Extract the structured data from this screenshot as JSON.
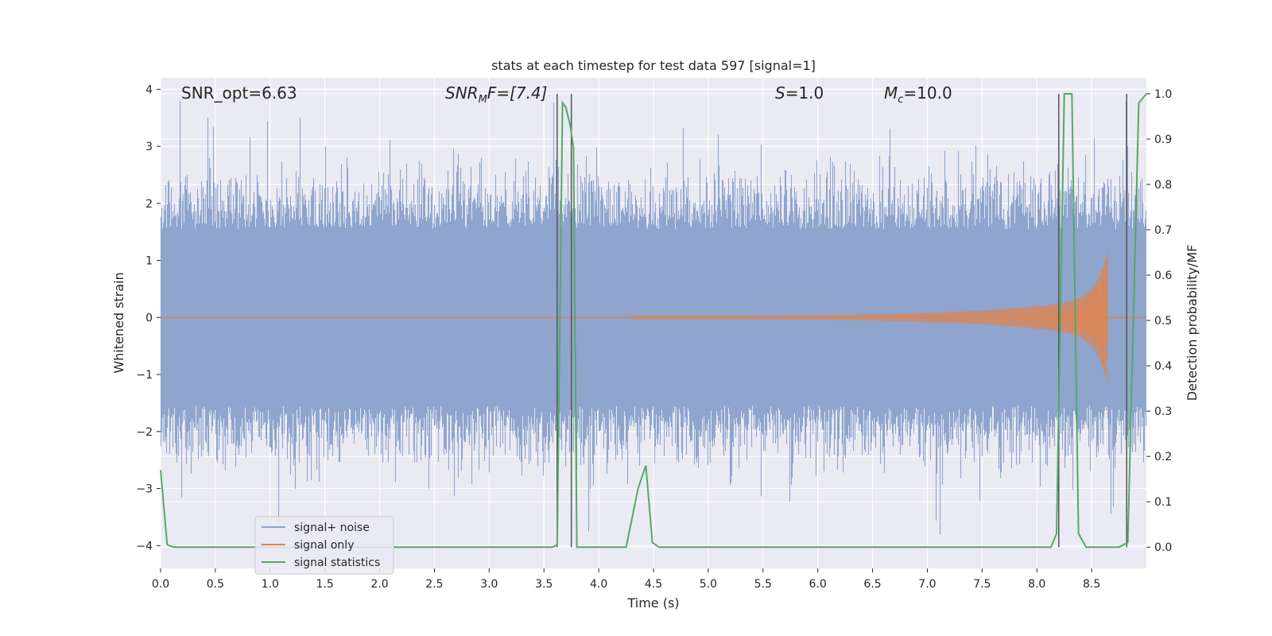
{
  "chart_data": {
    "type": "line",
    "title": "stats at each timestep for test data 597 [signal=1]",
    "xlabel": "Time (s)",
    "ylabel": "Whitened strain",
    "y2label": "Detection probability/MF",
    "xlim": [
      0.0,
      9.0
    ],
    "ylim": [
      -4.4,
      4.2
    ],
    "y2lim": [
      -0.047,
      1.035
    ],
    "x_ticks": [
      "0.0",
      "0.5",
      "1.0",
      "1.5",
      "2.0",
      "2.5",
      "3.0",
      "3.5",
      "4.0",
      "4.5",
      "5.0",
      "5.5",
      "6.0",
      "6.5",
      "7.0",
      "7.5",
      "8.0",
      "8.5"
    ],
    "y_ticks": [
      "−4",
      "−3",
      "−2",
      "−1",
      "0",
      "1",
      "2",
      "3",
      "4"
    ],
    "y2_ticks": [
      "0.0",
      "0.1",
      "0.2",
      "0.3",
      "0.4",
      "0.5",
      "0.6",
      "0.7",
      "0.8",
      "0.9",
      "1.0"
    ],
    "y2_tick_values": [
      0.0,
      0.1,
      0.2,
      0.3,
      0.4,
      0.5,
      0.6,
      0.7,
      0.8,
      0.9,
      1.0
    ],
    "grid": true,
    "legend_position": "lower-left",
    "annotations": {
      "snr_opt": "SNR_opt=6.63",
      "snr_mf_main": "SNR",
      "snr_mf_sub": "M",
      "snr_mf_rest": "F=[7.4]",
      "s_main": "S",
      "s_rest": "=1.0",
      "mc_main": "M",
      "mc_sub": "c",
      "mc_rest": "=10.0"
    },
    "series": [
      {
        "name": "signal+ noise",
        "color": "#8fa5ce",
        "envelope_amplitude": 1.55,
        "peak_amplitude": 3.8
      },
      {
        "name": "signal only",
        "color": "#dd8452",
        "chirp_start": 4.3,
        "chirp_peak_time": 8.65,
        "chirp_peak_amplitude": 1.2
      },
      {
        "name": "signal statistics",
        "color": "#55a868",
        "x": [
          0.0,
          0.06,
          0.12,
          0.5,
          1.0,
          1.5,
          2.0,
          2.5,
          3.0,
          3.5,
          3.58,
          3.62,
          3.67,
          3.7,
          3.74,
          3.77,
          3.8,
          3.85,
          4.0,
          4.25,
          4.36,
          4.43,
          4.49,
          4.55,
          5.0,
          6.0,
          7.0,
          8.0,
          8.13,
          8.18,
          8.25,
          8.3,
          8.32,
          8.38,
          8.45,
          8.6,
          8.75,
          8.83,
          8.93,
          9.0
        ],
        "y": [
          0.17,
          0.005,
          0.0,
          0.0,
          0.0,
          0.0,
          0.0,
          0.0,
          0.0,
          0.0,
          0.0,
          0.005,
          0.98,
          0.97,
          0.93,
          0.88,
          0.0,
          0.0,
          0.0,
          0.0,
          0.13,
          0.18,
          0.01,
          0.0,
          0.0,
          0.0,
          0.0,
          0.0,
          0.0,
          0.03,
          1.0,
          1.0,
          1.0,
          0.03,
          0.0,
          0.0,
          0.0,
          0.01,
          0.98,
          1.0
        ]
      }
    ],
    "vlines_x": [
      3.62,
      3.75,
      8.2,
      8.82
    ]
  }
}
